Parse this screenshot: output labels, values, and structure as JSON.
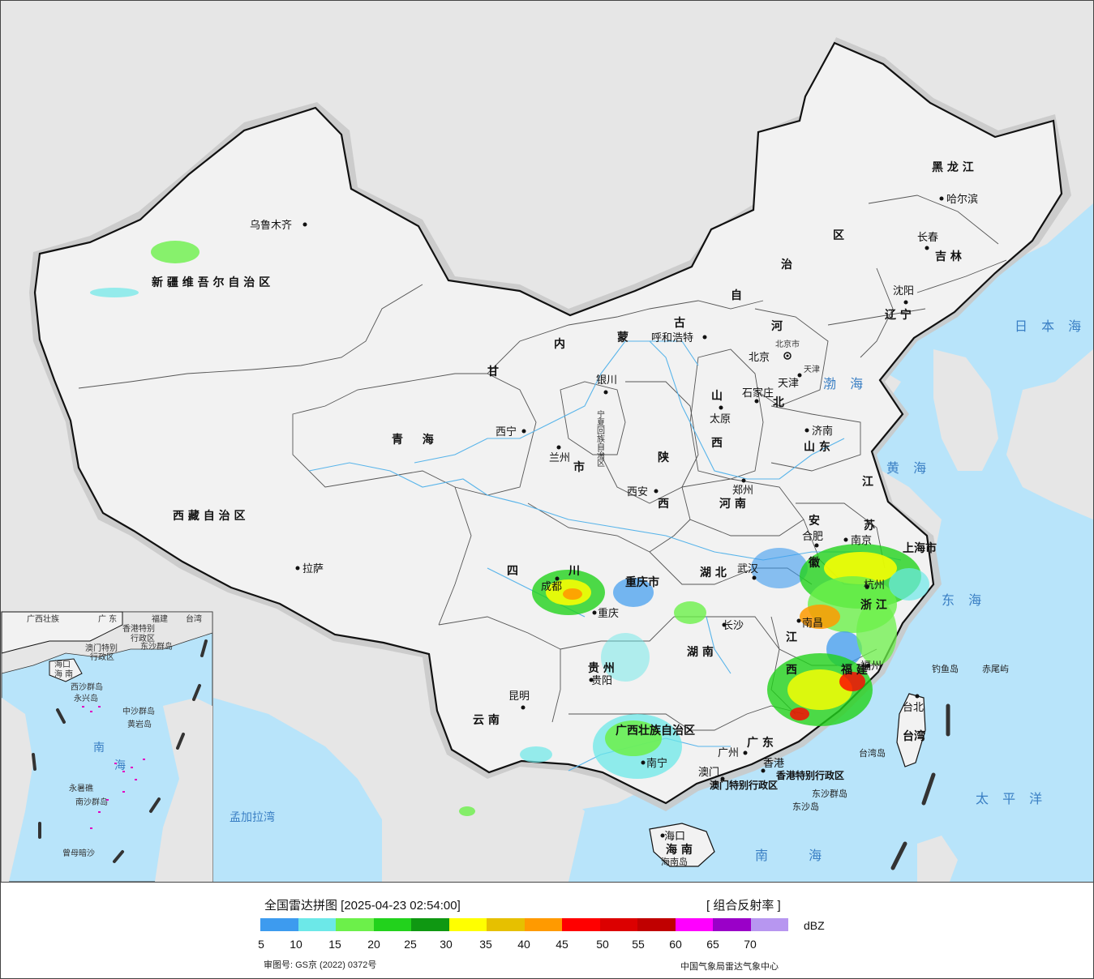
{
  "map": {
    "provinces": [
      {
        "id": "xinjiang",
        "label": "新 疆 维 吾 尔 自 治 区"
      },
      {
        "id": "xizang",
        "label": "西 藏 自 治 区"
      },
      {
        "id": "qinghai",
        "label": "青 　 海"
      },
      {
        "id": "gansu",
        "label": "甘"
      },
      {
        "id": "neimenggu_nei",
        "label": "内"
      },
      {
        "id": "neimenggu_meng",
        "label": "蒙"
      },
      {
        "id": "neimenggu_gu",
        "label": "古"
      },
      {
        "id": "neimenggu_zi",
        "label": "自"
      },
      {
        "id": "neimenggu_zhi",
        "label": "治"
      },
      {
        "id": "neimenggu_qu",
        "label": "区"
      },
      {
        "id": "heilongjiang",
        "label": "黑 龙 江"
      },
      {
        "id": "jilin",
        "label": "吉 林"
      },
      {
        "id": "liaoning",
        "label": "辽 宁"
      },
      {
        "id": "hebei_he",
        "label": "河"
      },
      {
        "id": "hebei_bei",
        "label": "北"
      },
      {
        "id": "shanxi_shan",
        "label": "山"
      },
      {
        "id": "shanxi_xi",
        "label": "西"
      },
      {
        "id": "shandong",
        "label": "山 东"
      },
      {
        "id": "shaanxi_shan",
        "label": "陕"
      },
      {
        "id": "shaanxi_xi",
        "label": "西"
      },
      {
        "id": "henan",
        "label": "河 南"
      },
      {
        "id": "jiangsu_jiang",
        "label": "江"
      },
      {
        "id": "jiangsu_su",
        "label": "苏"
      },
      {
        "id": "anhui_an",
        "label": "安"
      },
      {
        "id": "anhui_hui",
        "label": "徽"
      },
      {
        "id": "shanghai",
        "label": "上海市"
      },
      {
        "id": "zhejiang",
        "label": "浙 江"
      },
      {
        "id": "hubei",
        "label": "湖 北"
      },
      {
        "id": "hunan",
        "label": "湖 南"
      },
      {
        "id": "jiangxi_jiang",
        "label": "江"
      },
      {
        "id": "jiangxi_xi",
        "label": "西"
      },
      {
        "id": "fujian",
        "label": "福 建"
      },
      {
        "id": "sichuan_si",
        "label": "四"
      },
      {
        "id": "sichuan_chuan",
        "label": "川"
      },
      {
        "id": "chongqing",
        "label": "重庆市"
      },
      {
        "id": "guizhou",
        "label": "贵 州"
      },
      {
        "id": "yunnan",
        "label": "云 南"
      },
      {
        "id": "guangxi",
        "label": "广西壮族自治区"
      },
      {
        "id": "guangdong",
        "label": "广 东"
      },
      {
        "id": "hainan",
        "label": "海 南"
      },
      {
        "id": "taiwan",
        "label": "台湾"
      },
      {
        "id": "ningxia",
        "label": "宁夏回族自治区"
      },
      {
        "id": "gansu_su",
        "label": "市"
      }
    ],
    "cities": [
      {
        "id": "urumqi",
        "label": "乌鲁木齐"
      },
      {
        "id": "lhasa",
        "label": "拉萨"
      },
      {
        "id": "xining",
        "label": "西宁"
      },
      {
        "id": "lanzhou",
        "label": "兰州"
      },
      {
        "id": "yinchuan",
        "label": "银川"
      },
      {
        "id": "hohhot",
        "label": "呼和浩特"
      },
      {
        "id": "harbin",
        "label": "哈尔滨"
      },
      {
        "id": "changchun",
        "label": "长春"
      },
      {
        "id": "shenyang",
        "label": "沈阳"
      },
      {
        "id": "beijing",
        "label": "北京"
      },
      {
        "id": "beijing_shi",
        "label": "北京市"
      },
      {
        "id": "tianjin",
        "label": "天津"
      },
      {
        "id": "tianjin_shi",
        "label": "天津"
      },
      {
        "id": "shijiazhuang",
        "label": "石家庄"
      },
      {
        "id": "taiyuan",
        "label": "太原"
      },
      {
        "id": "jinan",
        "label": "济南"
      },
      {
        "id": "zhengzhou",
        "label": "郑州"
      },
      {
        "id": "xian",
        "label": "西安"
      },
      {
        "id": "hefei",
        "label": "合肥"
      },
      {
        "id": "nanjing",
        "label": "南京"
      },
      {
        "id": "hangzhou",
        "label": "杭州"
      },
      {
        "id": "wuhan",
        "label": "武汉"
      },
      {
        "id": "changsha",
        "label": "长沙"
      },
      {
        "id": "nanchang",
        "label": "南昌"
      },
      {
        "id": "fuzhou",
        "label": "福州"
      },
      {
        "id": "chengdu",
        "label": "成都"
      },
      {
        "id": "chongqing_c",
        "label": "重庆"
      },
      {
        "id": "guiyang",
        "label": "贵阳"
      },
      {
        "id": "kunming",
        "label": "昆明"
      },
      {
        "id": "nanning",
        "label": "南宁"
      },
      {
        "id": "guangzhou",
        "label": "广州"
      },
      {
        "id": "macau",
        "label": "澳门"
      },
      {
        "id": "hongkong",
        "label": "香港"
      },
      {
        "id": "haikou",
        "label": "海口"
      },
      {
        "id": "taibei",
        "label": "台北"
      }
    ],
    "special": [
      {
        "id": "hk_sar",
        "label": "香港特别行政区"
      },
      {
        "id": "mo_sar",
        "label": "澳门特别行政区"
      }
    ],
    "seas": [
      {
        "id": "bohai",
        "label": "渤 海"
      },
      {
        "id": "huanghai",
        "label": "黄 海"
      },
      {
        "id": "donghai",
        "label": "东 海"
      },
      {
        "id": "nanhai",
        "label": "南 　 海"
      },
      {
        "id": "taipingyang",
        "label": "太 平 洋"
      },
      {
        "id": "ribenhai",
        "label": "日 本 海"
      },
      {
        "id": "mengjiala",
        "label": "孟加拉湾"
      }
    ],
    "islands": [
      {
        "id": "diaoyu",
        "label": "钓鱼岛"
      },
      {
        "id": "chiwei",
        "label": "赤尾屿"
      },
      {
        "id": "dongsha_qd",
        "label": "东沙群岛"
      },
      {
        "id": "dongsha_d",
        "label": "东沙岛"
      },
      {
        "id": "hainan_dao",
        "label": "海南岛"
      },
      {
        "id": "taiwan_dao",
        "label": "台湾岛"
      }
    ],
    "inset": [
      {
        "id": "in_guangxi",
        "label": "广西壮族"
      },
      {
        "id": "in_guangdong",
        "label": "广 东"
      },
      {
        "id": "in_fujian",
        "label": "福建"
      },
      {
        "id": "in_taiwan",
        "label": "台湾"
      },
      {
        "id": "in_hk",
        "label": "香港特别"
      },
      {
        "id": "in_hk2",
        "label": "行政区"
      },
      {
        "id": "in_mo",
        "label": "澳门特别"
      },
      {
        "id": "in_mo2",
        "label": "行政区"
      },
      {
        "id": "in_dongsha",
        "label": "东沙群岛"
      },
      {
        "id": "in_haikou",
        "label": "海口"
      },
      {
        "id": "in_hainan",
        "label": "海 南"
      },
      {
        "id": "in_xisha",
        "label": "西沙群岛"
      },
      {
        "id": "in_yongxing",
        "label": "永兴岛"
      },
      {
        "id": "in_zhongsha",
        "label": "中沙群岛"
      },
      {
        "id": "in_huangyan",
        "label": "黄岩岛"
      },
      {
        "id": "in_nan",
        "label": "南"
      },
      {
        "id": "in_hai",
        "label": "海"
      },
      {
        "id": "in_yongshu",
        "label": "永暑礁"
      },
      {
        "id": "in_nansha",
        "label": "南沙群岛"
      },
      {
        "id": "in_zengmu",
        "label": "曾母暗沙"
      }
    ],
    "colors": {
      "land": "#f2f2f2",
      "foreign": "#e6e6e6",
      "ocean": "#b8e4fa",
      "border": "#111111",
      "river": "#58b4ea"
    }
  },
  "legend": {
    "title": "全国雷达拼图 [2025-04-23 02:54:00]",
    "product": "[ 组合反射率 ]",
    "unit": "dBZ",
    "colors": [
      "#3d9bef",
      "#6ce8e8",
      "#6cf04a",
      "#22d21c",
      "#0f9812",
      "#ffff00",
      "#e6c000",
      "#ff9a00",
      "#ff0000",
      "#dc0000",
      "#c00000",
      "#ff00ff",
      "#9a00c8",
      "#b796f0"
    ],
    "ticks": [
      "5",
      "10",
      "15",
      "20",
      "25",
      "30",
      "35",
      "40",
      "45",
      "50",
      "55",
      "60",
      "65",
      "70"
    ],
    "approval": "审图号: GS京 (2022) 0372号",
    "source": "中国气象局雷达气象中心"
  }
}
